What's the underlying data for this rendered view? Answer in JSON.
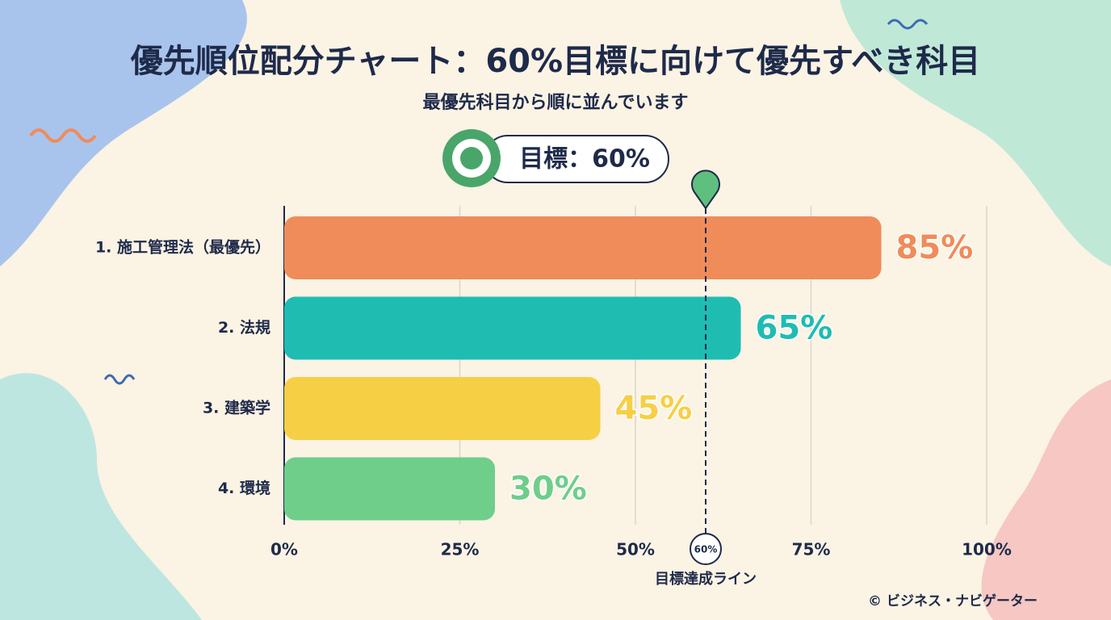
{
  "chart_data": {
    "type": "bar",
    "orientation": "horizontal",
    "title": "優先順位配分チャート：60%目標に向けて優先すべき科目",
    "subtitle": "最優先科目から順に並んでいます",
    "badge": "目標：60%",
    "categories": [
      "1. 施工管理法（最優先）",
      "2. 法規",
      "3. 建築学",
      "4. 環境"
    ],
    "values": [
      85,
      65,
      45,
      30
    ],
    "value_labels": [
      "85%",
      "65%",
      "45%",
      "30%"
    ],
    "colors": [
      "#ef8c5a",
      "#1fbcb2",
      "#f7cf45",
      "#6fce8a"
    ],
    "xlim": [
      0,
      100
    ],
    "xticks": [
      {
        "value": 0,
        "label": "0%"
      },
      {
        "value": 25,
        "label": "25%"
      },
      {
        "value": 50,
        "label": "50%"
      },
      {
        "value": 75,
        "label": "75%"
      },
      {
        "value": 100,
        "label": "100%"
      }
    ],
    "grid": true,
    "target": {
      "value": 60,
      "label": "60%"
    },
    "target_label": "目標達成ライン",
    "footer": "© ビジネス・ナビゲーター"
  }
}
